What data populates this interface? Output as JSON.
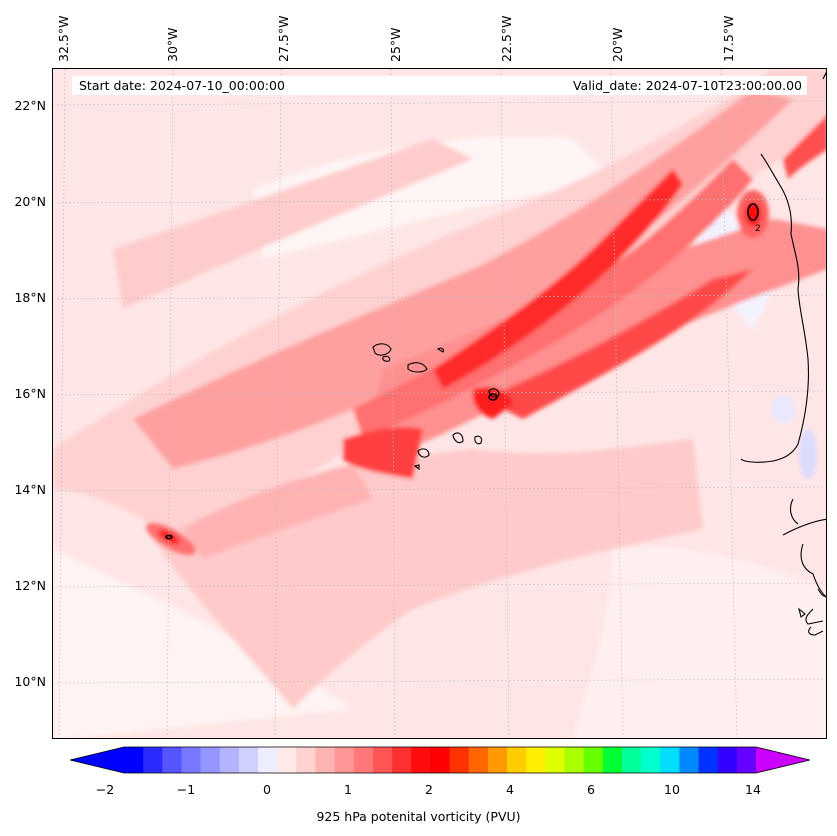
{
  "map": {
    "start_date": "Start date: 2024-07-10_00:00:00",
    "valid_date": "Valid_date: 2024-07-10T23:00:00.00",
    "longitude_labels": [
      "32.5°W",
      "30°W",
      "27.5°W",
      "25°W",
      "22.5°W",
      "20°W",
      "17.5°W"
    ],
    "latitude_labels": [
      "22°N",
      "20°N",
      "18°N",
      "16°N",
      "14°N",
      "12°N",
      "10°N"
    ],
    "contour_label": "2"
  },
  "colorbar": {
    "label": "925 hPa potenital vorticity (PVU)",
    "tick_labels": [
      "−2",
      "−1",
      "0",
      "1",
      "2",
      "4",
      "6",
      "10",
      "14"
    ],
    "colors": [
      "#0000ff",
      "#2a2aff",
      "#5555ff",
      "#7777ff",
      "#9595ff",
      "#b3b3ff",
      "#d1d1ff",
      "#eeeeff",
      "#ffe9e9",
      "#ffd1d1",
      "#ffb3b3",
      "#ff9595",
      "#ff7777",
      "#ff5555",
      "#ff3030",
      "#ff0c0c",
      "#ff0000",
      "#ff3300",
      "#ff6600",
      "#ff9900",
      "#ffcc00",
      "#ffee00",
      "#ddff00",
      "#aaff00",
      "#66ff00",
      "#00ff33",
      "#00ff99",
      "#00ffcc",
      "#00ddff",
      "#0088ff",
      "#0033ff",
      "#3300ff",
      "#6600ff"
    ],
    "under_color": "#0000ff",
    "over_color": "#cc00ff"
  }
}
